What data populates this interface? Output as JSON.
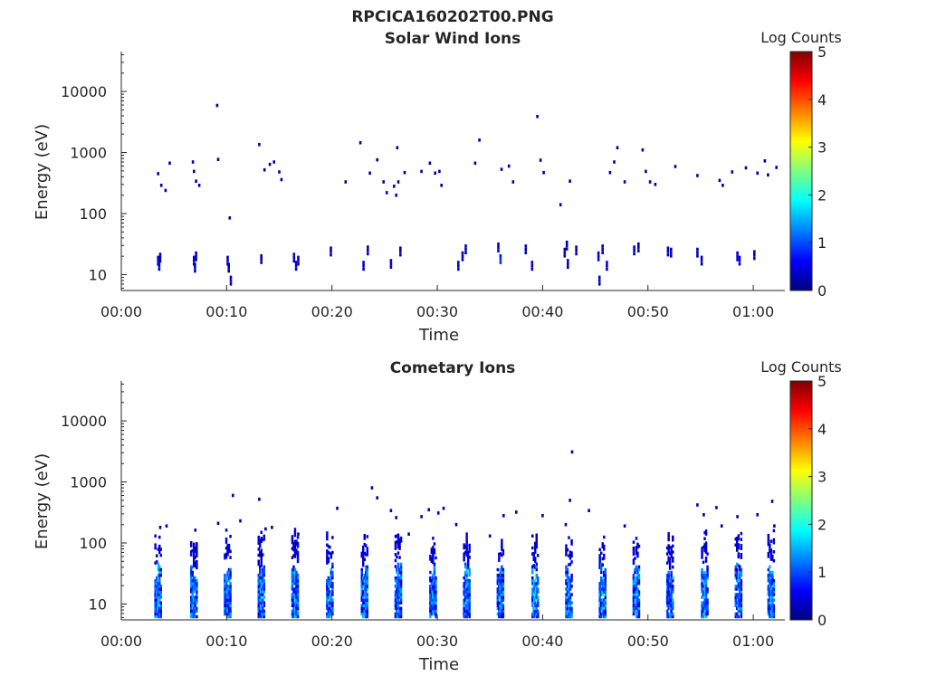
{
  "figure": {
    "title": "RPCICA160202T00.PNG"
  },
  "colormap": {
    "name": "jet",
    "stops": [
      "#00007f",
      "#0000ff",
      "#007fff",
      "#00ffff",
      "#7fff7f",
      "#ffff00",
      "#ff7f00",
      "#ff0000",
      "#7f0000"
    ],
    "background": "#ffffff",
    "axis_color": "#262626"
  },
  "chart_data": [
    {
      "type": "heatmap",
      "title": "Solar Wind Ions",
      "xlabel": "Time",
      "ylabel": "Energy (eV)",
      "y_scale": "log",
      "xlim_minutes": [
        0,
        63
      ],
      "ylim": [
        5.5,
        45000
      ],
      "xticks": [
        {
          "minutes": 0,
          "label": "00:00"
        },
        {
          "minutes": 10,
          "label": "00:10"
        },
        {
          "minutes": 20,
          "label": "00:20"
        },
        {
          "minutes": 30,
          "label": "00:30"
        },
        {
          "minutes": 40,
          "label": "00:40"
        },
        {
          "minutes": 50,
          "label": "00:50"
        },
        {
          "minutes": 60,
          "label": "01:00"
        }
      ],
      "yticks": [
        {
          "value": 10,
          "label": "10"
        },
        {
          "value": 100,
          "label": "100"
        },
        {
          "value": 1000,
          "label": "1000"
        },
        {
          "value": 10000,
          "label": "10000"
        }
      ],
      "colorbar": {
        "label": "Log Counts",
        "range": [
          0,
          5
        ],
        "ticks": [
          "0",
          "1",
          "2",
          "3",
          "4",
          "5"
        ]
      },
      "grid": false,
      "points": [
        [
          3.5,
          17,
          0.5
        ],
        [
          3.6,
          14,
          0.4
        ],
        [
          3.7,
          19,
          0.3
        ],
        [
          3.5,
          450,
          0.2
        ],
        [
          3.8,
          290,
          0.2
        ],
        [
          4.2,
          240,
          0.2
        ],
        [
          4.6,
          670,
          0.2
        ],
        [
          6.9,
          17,
          0.4
        ],
        [
          7.0,
          13,
          0.3
        ],
        [
          7.1,
          20,
          0.5
        ],
        [
          6.8,
          700,
          0.2
        ],
        [
          6.9,
          490,
          0.2
        ],
        [
          7.1,
          340,
          0.2
        ],
        [
          7.4,
          290,
          0.2
        ],
        [
          9.1,
          5900,
          0.2
        ],
        [
          9.2,
          770,
          0.2
        ],
        [
          10.1,
          17,
          0.3
        ],
        [
          10.2,
          13,
          0.3
        ],
        [
          10.4,
          8,
          0.3
        ],
        [
          10.3,
          85,
          0.2
        ],
        [
          13.1,
          1350,
          0.2
        ],
        [
          13.3,
          18,
          0.3
        ],
        [
          13.6,
          520,
          0.2
        ],
        [
          14.1,
          640,
          0.2
        ],
        [
          14.5,
          700,
          0.3
        ],
        [
          15.0,
          480,
          0.2
        ],
        [
          15.2,
          360,
          0.2
        ],
        [
          16.4,
          19,
          0.4
        ],
        [
          16.6,
          14,
          0.4
        ],
        [
          16.8,
          17,
          0.3
        ],
        [
          19.9,
          24,
          0.3
        ],
        [
          21.3,
          330,
          0.2
        ],
        [
          22.7,
          1450,
          0.2
        ],
        [
          23.0,
          14,
          0.4
        ],
        [
          23.4,
          25,
          0.3
        ],
        [
          23.6,
          460,
          0.2
        ],
        [
          24.3,
          760,
          0.2
        ],
        [
          24.9,
          330,
          0.3
        ],
        [
          25.2,
          220,
          0.3
        ],
        [
          25.6,
          15,
          0.4
        ],
        [
          25.9,
          280,
          0.4
        ],
        [
          26.1,
          200,
          0.4
        ],
        [
          26.3,
          330,
          0.3
        ],
        [
          26.5,
          24,
          0.3
        ],
        [
          26.2,
          1200,
          0.2
        ],
        [
          26.9,
          470,
          0.2
        ],
        [
          28.5,
          490,
          0.2
        ],
        [
          29.3,
          670,
          0.2
        ],
        [
          29.8,
          460,
          0.2
        ],
        [
          30.2,
          490,
          0.2
        ],
        [
          30.4,
          290,
          0.2
        ],
        [
          32.0,
          14,
          0.4
        ],
        [
          32.4,
          20,
          0.3
        ],
        [
          32.7,
          26,
          0.3
        ],
        [
          33.6,
          670,
          0.2
        ],
        [
          34.0,
          1600,
          0.2
        ],
        [
          35.8,
          28,
          0.4
        ],
        [
          36.0,
          18,
          0.9
        ],
        [
          36.1,
          530,
          0.2
        ],
        [
          36.8,
          600,
          0.2
        ],
        [
          37.2,
          330,
          0.2
        ],
        [
          38.4,
          26,
          0.3
        ],
        [
          39.0,
          14,
          0.4
        ],
        [
          39.5,
          3900,
          0.2
        ],
        [
          39.8,
          750,
          0.3
        ],
        [
          40.1,
          470,
          0.2
        ],
        [
          41.7,
          140,
          0.2
        ],
        [
          42.1,
          23,
          0.4
        ],
        [
          42.3,
          30,
          0.3
        ],
        [
          42.4,
          15,
          0.3
        ],
        [
          42.6,
          340,
          0.2
        ],
        [
          43.2,
          25,
          0.4
        ],
        [
          45.3,
          20,
          0.5
        ],
        [
          45.4,
          8,
          0.4
        ],
        [
          45.7,
          26,
          0.3
        ],
        [
          46.1,
          14,
          0.4
        ],
        [
          46.4,
          470,
          0.2
        ],
        [
          46.8,
          700,
          0.2
        ],
        [
          47.1,
          1200,
          0.2
        ],
        [
          47.8,
          330,
          0.3
        ],
        [
          48.7,
          25,
          0.3
        ],
        [
          49.1,
          28,
          0.3
        ],
        [
          49.5,
          1100,
          0.2
        ],
        [
          49.8,
          490,
          0.2
        ],
        [
          50.2,
          330,
          0.3
        ],
        [
          50.7,
          300,
          0.2
        ],
        [
          51.9,
          24,
          0.3
        ],
        [
          52.2,
          23,
          0.3
        ],
        [
          52.6,
          590,
          0.2
        ],
        [
          54.7,
          23,
          0.3
        ],
        [
          55.1,
          17,
          0.3
        ],
        [
          54.7,
          420,
          0.3
        ],
        [
          56.8,
          350,
          0.3
        ],
        [
          57.1,
          290,
          0.2
        ],
        [
          58.0,
          480,
          0.2
        ],
        [
          58.5,
          20,
          0.5
        ],
        [
          58.7,
          17,
          0.6
        ],
        [
          59.3,
          560,
          0.2
        ],
        [
          60.1,
          21,
          0.3
        ],
        [
          60.4,
          460,
          0.2
        ],
        [
          61.4,
          430,
          0.2
        ],
        [
          62.2,
          570,
          0.2
        ],
        [
          61.1,
          730,
          0.2
        ]
      ]
    },
    {
      "type": "heatmap",
      "title": "Cometary Ions",
      "xlabel": "Time",
      "ylabel": "Energy (eV)",
      "y_scale": "log",
      "xlim_minutes": [
        0,
        63
      ],
      "ylim": [
        5.5,
        45000
      ],
      "xticks": [
        {
          "minutes": 0,
          "label": "00:00"
        },
        {
          "minutes": 10,
          "label": "00:10"
        },
        {
          "minutes": 20,
          "label": "00:20"
        },
        {
          "minutes": 30,
          "label": "00:30"
        },
        {
          "minutes": 40,
          "label": "00:40"
        },
        {
          "minutes": 50,
          "label": "00:50"
        },
        {
          "minutes": 60,
          "label": "01:00"
        }
      ],
      "yticks": [
        {
          "value": 10,
          "label": "10"
        },
        {
          "value": 100,
          "label": "100"
        },
        {
          "value": 1000,
          "label": "1000"
        },
        {
          "value": 10000,
          "label": "10000"
        }
      ],
      "colorbar": {
        "label": "Log Counts",
        "range": [
          0,
          5
        ],
        "ticks": [
          "0",
          "1",
          "2",
          "3",
          "4",
          "5"
        ]
      },
      "grid": false,
      "bursts": [
        3.5,
        6.9,
        10.1,
        13.3,
        16.5,
        19.8,
        23.1,
        26.3,
        29.6,
        32.8,
        36.0,
        39.3,
        42.5,
        45.7,
        48.9,
        52.1,
        55.4,
        58.6,
        61.7
      ],
      "points": [
        [
          3.7,
          180,
          0.2
        ],
        [
          4.3,
          190,
          0.2
        ],
        [
          9.2,
          210,
          0.2
        ],
        [
          10.6,
          600,
          0.2
        ],
        [
          11.3,
          230,
          0.2
        ],
        [
          13.1,
          520,
          0.2
        ],
        [
          13.7,
          170,
          0.2
        ],
        [
          14.3,
          180,
          0.3
        ],
        [
          16.8,
          140,
          0.2
        ],
        [
          20.5,
          370,
          0.2
        ],
        [
          23.8,
          800,
          0.2
        ],
        [
          24.3,
          550,
          0.2
        ],
        [
          25.6,
          340,
          0.2
        ],
        [
          26.1,
          260,
          0.3
        ],
        [
          27.3,
          140,
          0.2
        ],
        [
          28.5,
          270,
          0.3
        ],
        [
          29.2,
          350,
          0.3
        ],
        [
          30.1,
          310,
          0.3
        ],
        [
          30.6,
          370,
          0.2
        ],
        [
          31.8,
          200,
          0.2
        ],
        [
          35.0,
          130,
          0.2
        ],
        [
          36.3,
          280,
          0.3
        ],
        [
          37.5,
          320,
          0.2
        ],
        [
          40.0,
          280,
          0.2
        ],
        [
          42.2,
          200,
          0.3
        ],
        [
          42.8,
          3100,
          0.2
        ],
        [
          42.6,
          500,
          0.2
        ],
        [
          44.4,
          340,
          0.2
        ],
        [
          47.8,
          190,
          0.2
        ],
        [
          54.7,
          420,
          0.3
        ],
        [
          55.3,
          290,
          0.2
        ],
        [
          56.5,
          380,
          0.3
        ],
        [
          57.0,
          190,
          0.2
        ],
        [
          58.5,
          270,
          0.2
        ],
        [
          60.4,
          290,
          0.2
        ],
        [
          61.8,
          480,
          0.2
        ],
        [
          62.0,
          190,
          0.2
        ]
      ]
    }
  ]
}
